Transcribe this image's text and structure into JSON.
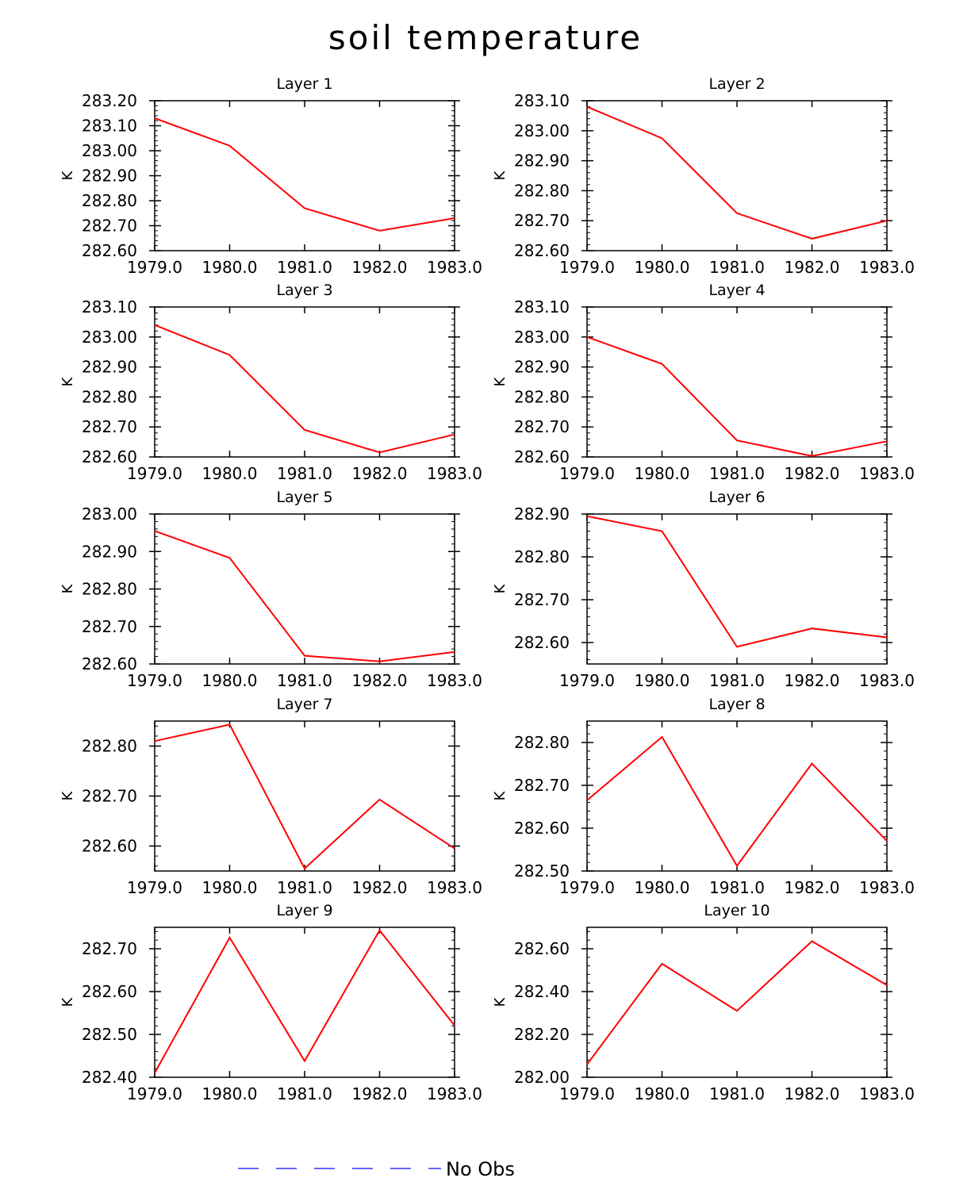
{
  "title": "soil temperature",
  "colors": {
    "series": "#ff0000",
    "legend_line": "#3333ff",
    "axes": "#000000"
  },
  "legend": {
    "label": "No Obs"
  },
  "chart_data": [
    {
      "type": "line",
      "title": "Layer 1",
      "ylabel": "K",
      "x": [
        1979,
        1980,
        1981,
        1982,
        1983
      ],
      "xticks": [
        "1979.0",
        "1980.0",
        "1981.0",
        "1982.0",
        "1983.0"
      ],
      "ylim": [
        282.6,
        283.2
      ],
      "yticks": [
        "282.60",
        "282.70",
        "282.80",
        "282.90",
        "283.00",
        "283.10",
        "283.20"
      ],
      "series": [
        {
          "name": "soil temperature",
          "values": [
            283.13,
            283.02,
            282.77,
            282.68,
            282.73
          ]
        }
      ]
    },
    {
      "type": "line",
      "title": "Layer 2",
      "ylabel": "K",
      "x": [
        1979,
        1980,
        1981,
        1982,
        1983
      ],
      "xticks": [
        "1979.0",
        "1980.0",
        "1981.0",
        "1982.0",
        "1983.0"
      ],
      "ylim": [
        282.6,
        283.1
      ],
      "yticks": [
        "282.60",
        "282.70",
        "282.80",
        "282.90",
        "283.00",
        "283.10"
      ],
      "series": [
        {
          "name": "soil temperature",
          "values": [
            283.08,
            282.975,
            282.725,
            282.64,
            282.7
          ]
        }
      ]
    },
    {
      "type": "line",
      "title": "Layer 3",
      "ylabel": "K",
      "x": [
        1979,
        1980,
        1981,
        1982,
        1983
      ],
      "xticks": [
        "1979.0",
        "1980.0",
        "1981.0",
        "1982.0",
        "1983.0"
      ],
      "ylim": [
        282.6,
        283.1
      ],
      "yticks": [
        "282.60",
        "282.70",
        "282.80",
        "282.90",
        "283.00",
        "283.10"
      ],
      "series": [
        {
          "name": "soil temperature",
          "values": [
            283.04,
            282.94,
            282.69,
            282.615,
            282.675
          ]
        }
      ]
    },
    {
      "type": "line",
      "title": "Layer 4",
      "ylabel": "K",
      "x": [
        1979,
        1980,
        1981,
        1982,
        1983
      ],
      "xticks": [
        "1979.0",
        "1980.0",
        "1981.0",
        "1982.0",
        "1983.0"
      ],
      "ylim": [
        282.6,
        283.1
      ],
      "yticks": [
        "282.60",
        "282.70",
        "282.80",
        "282.90",
        "283.00",
        "283.10"
      ],
      "series": [
        {
          "name": "soil temperature",
          "values": [
            283.0,
            282.91,
            282.655,
            282.603,
            282.652
          ]
        }
      ]
    },
    {
      "type": "line",
      "title": "Layer 5",
      "ylabel": "K",
      "x": [
        1979,
        1980,
        1981,
        1982,
        1983
      ],
      "xticks": [
        "1979.0",
        "1980.0",
        "1981.0",
        "1982.0",
        "1983.0"
      ],
      "ylim": [
        282.6,
        283.0
      ],
      "yticks": [
        "282.60",
        "282.70",
        "282.80",
        "282.90",
        "283.00"
      ],
      "series": [
        {
          "name": "soil temperature",
          "values": [
            282.955,
            282.883,
            282.622,
            282.607,
            282.632
          ]
        }
      ]
    },
    {
      "type": "line",
      "title": "Layer 6",
      "ylabel": "K",
      "x": [
        1979,
        1980,
        1981,
        1982,
        1983
      ],
      "xticks": [
        "1979.0",
        "1980.0",
        "1981.0",
        "1982.0",
        "1983.0"
      ],
      "ylim": [
        282.55,
        282.9
      ],
      "yticks": [
        "282.60",
        "282.70",
        "282.80",
        "282.90"
      ],
      "series": [
        {
          "name": "soil temperature",
          "values": [
            282.895,
            282.86,
            282.59,
            282.633,
            282.612
          ]
        }
      ]
    },
    {
      "type": "line",
      "title": "Layer 7",
      "ylabel": "K",
      "x": [
        1979,
        1980,
        1981,
        1982,
        1983
      ],
      "xticks": [
        "1979.0",
        "1980.0",
        "1981.0",
        "1982.0",
        "1983.0"
      ],
      "ylim": [
        282.55,
        282.85
      ],
      "yticks": [
        "282.60",
        "282.70",
        "282.80"
      ],
      "series": [
        {
          "name": "soil temperature",
          "values": [
            282.81,
            282.843,
            282.555,
            282.693,
            282.595
          ]
        }
      ]
    },
    {
      "type": "line",
      "title": "Layer 8",
      "ylabel": "K",
      "x": [
        1979,
        1980,
        1981,
        1982,
        1983
      ],
      "xticks": [
        "1979.0",
        "1980.0",
        "1981.0",
        "1982.0",
        "1983.0"
      ],
      "ylim": [
        282.5,
        282.85
      ],
      "yticks": [
        "282.50",
        "282.60",
        "282.70",
        "282.80"
      ],
      "series": [
        {
          "name": "soil temperature",
          "values": [
            282.665,
            282.813,
            282.512,
            282.751,
            282.57
          ]
        }
      ]
    },
    {
      "type": "line",
      "title": "Layer 9",
      "ylabel": "K",
      "x": [
        1979,
        1980,
        1981,
        1982,
        1983
      ],
      "xticks": [
        "1979.0",
        "1980.0",
        "1981.0",
        "1982.0",
        "1983.0"
      ],
      "ylim": [
        282.4,
        282.75
      ],
      "yticks": [
        "282.40",
        "282.50",
        "282.60",
        "282.70"
      ],
      "series": [
        {
          "name": "soil temperature",
          "values": [
            282.41,
            282.726,
            282.438,
            282.743,
            282.521
          ]
        }
      ]
    },
    {
      "type": "line",
      "title": "Layer 10",
      "ylabel": "K",
      "x": [
        1979,
        1980,
        1981,
        1982,
        1983
      ],
      "xticks": [
        "1979.0",
        "1980.0",
        "1981.0",
        "1982.0",
        "1983.0"
      ],
      "ylim": [
        282.0,
        282.7
      ],
      "yticks": [
        "282.00",
        "282.20",
        "282.40",
        "282.60"
      ],
      "series": [
        {
          "name": "soil temperature",
          "values": [
            282.06,
            282.53,
            282.31,
            282.635,
            282.43
          ]
        }
      ]
    }
  ]
}
